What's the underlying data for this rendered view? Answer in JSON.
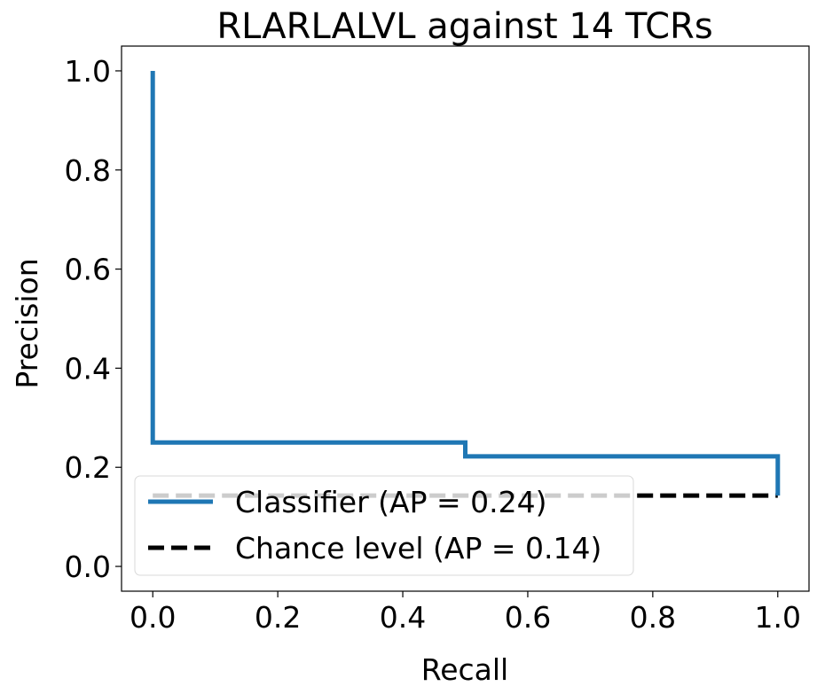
{
  "chart_data": {
    "type": "line",
    "title": "RLARLALVL against 14 TCRs",
    "xlabel": "Recall",
    "ylabel": "Precision",
    "xlim": [
      -0.05,
      1.05
    ],
    "ylim": [
      -0.05,
      1.05
    ],
    "xticks": [
      0.0,
      0.2,
      0.4,
      0.6,
      0.8,
      1.0
    ],
    "yticks": [
      0.0,
      0.2,
      0.4,
      0.6,
      0.8,
      1.0
    ],
    "xtick_labels": [
      "0.0",
      "0.2",
      "0.4",
      "0.6",
      "0.8",
      "1.0"
    ],
    "ytick_labels": [
      "0.0",
      "0.2",
      "0.4",
      "0.6",
      "0.8",
      "1.0"
    ],
    "grid": false,
    "legend_position": "lower-left",
    "series": [
      {
        "name": "Classifier (AP = 0.24)",
        "style": "step-solid",
        "color": "#1f77b4",
        "x": [
          0.0,
          0.0,
          0.5,
          0.5,
          1.0,
          1.0
        ],
        "y": [
          1.0,
          0.25,
          0.25,
          0.222,
          0.222,
          0.143
        ]
      },
      {
        "name": "Chance level (AP = 0.14)",
        "style": "dashed",
        "color": "#000000",
        "x": [
          0.0,
          1.0
        ],
        "y": [
          0.143,
          0.143
        ]
      }
    ]
  }
}
